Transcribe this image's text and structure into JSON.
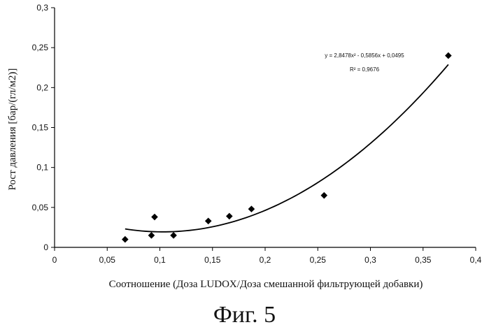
{
  "chart_data": {
    "type": "scatter",
    "xlabel": "Соотношение (Доза LUDOX/Доза смешанной фильтрующей добавки)",
    "ylabel": "Рост давления [бар/(гл/м2)]",
    "xlim": [
      0,
      0.4
    ],
    "ylim": [
      0,
      0.3
    ],
    "xticks": [
      "0",
      "0,05",
      "0,1",
      "0,15",
      "0,2",
      "0,25",
      "0,3",
      "0,35",
      "0,4"
    ],
    "yticks": [
      "0",
      "0,05",
      "0,1",
      "0,15",
      "0,2",
      "0,25",
      "0,3"
    ],
    "grid": false,
    "points": [
      {
        "x": 0.067,
        "y": 0.01
      },
      {
        "x": 0.092,
        "y": 0.015
      },
      {
        "x": 0.095,
        "y": 0.038
      },
      {
        "x": 0.113,
        "y": 0.015
      },
      {
        "x": 0.146,
        "y": 0.033
      },
      {
        "x": 0.166,
        "y": 0.039
      },
      {
        "x": 0.187,
        "y": 0.048
      },
      {
        "x": 0.256,
        "y": 0.065
      },
      {
        "x": 0.374,
        "y": 0.24
      }
    ],
    "trendline": {
      "type": "polynomial",
      "coefficients": [
        2.8478,
        -0.5856,
        0.0495
      ],
      "x_range": [
        0.067,
        0.374
      ],
      "equation": "y = 2,8478x² - 0,5856x + 0,0495",
      "r_squared": "R² = 0,9676"
    }
  },
  "caption": "Фиг. 5"
}
